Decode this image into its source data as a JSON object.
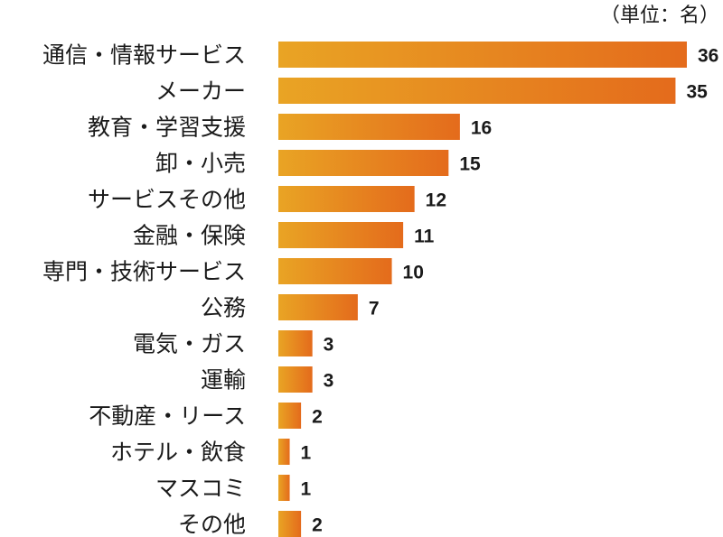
{
  "chart_data": {
    "type": "bar",
    "orientation": "horizontal",
    "unit_note": "（単位：名）",
    "categories": [
      "通信・情報サービス",
      "メーカー",
      "教育・学習支援",
      "卸・小売",
      "サービスその他",
      "金融・保険",
      "専門・技術サービス",
      "公務",
      "電気・ガス",
      "運輸",
      "不動産・リース",
      "ホテル・飲食",
      "マスコミ",
      "その他"
    ],
    "values": [
      36,
      35,
      16,
      15,
      12,
      11,
      10,
      7,
      3,
      3,
      2,
      1,
      1,
      2
    ],
    "xlim": [
      0,
      36
    ],
    "grid": false,
    "legend": "none",
    "colors": {
      "bar_start": "#e9a424",
      "bar_end": "#e46b1c",
      "text": "#1a1a1a"
    }
  }
}
